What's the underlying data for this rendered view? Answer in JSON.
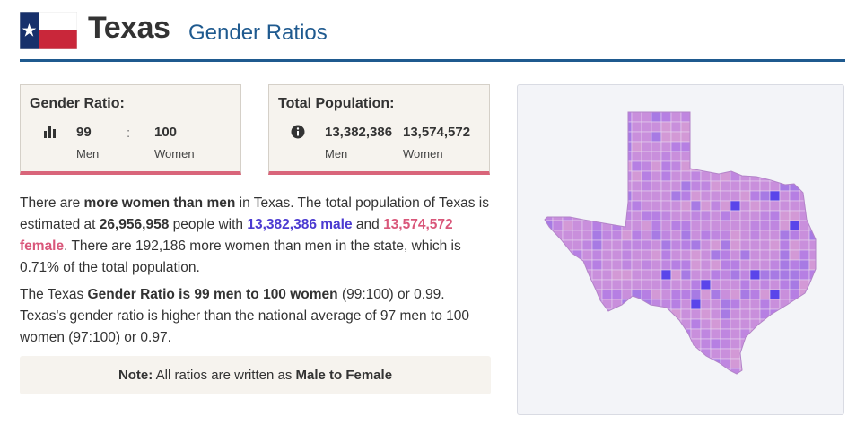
{
  "header": {
    "title": "Texas",
    "subtitle": "Gender Ratios"
  },
  "gender_ratio_card": {
    "title": "Gender Ratio:",
    "men_value": "99",
    "men_label": "Men",
    "separator": ":",
    "women_value": "100",
    "women_label": "Women",
    "icon": "bar-chart-icon"
  },
  "population_card": {
    "title": "Total Population:",
    "men_value": "13,382,386",
    "men_label": "Men",
    "women_value": "13,574,572",
    "women_label": "Women",
    "icon": "info-icon"
  },
  "paragraph1": {
    "t1": "There are ",
    "b1": "more women than men",
    "t2": " in Texas. The total population of Texas is estimated at ",
    "b2": "26,956,958",
    "t3": " people with ",
    "male": "13,382,386 male",
    "t4": " and ",
    "female": "13,574,572 female",
    "t5": ". There are 192,186 more women than men in the state, which is 0.71% of the total population."
  },
  "paragraph2": {
    "t1": "The Texas ",
    "b1": "Gender Ratio is 99 men to 100 women",
    "t2": " (99:100) or 0.99. Texas's gender ratio is higher than the national average of 97 men to 100 women (97:100) or 0.97."
  },
  "note": {
    "label": "Note:",
    "t1": " All ratios are written as ",
    "b1": "Male to Female"
  },
  "colors": {
    "accent": "#1f5a8f",
    "male": "#4b3ad1",
    "female": "#d9577a",
    "map_light": "#c98fdc",
    "map_mid": "#a77ae4",
    "map_dark": "#5a45ea"
  },
  "map": {
    "icon": "texas-county-map"
  }
}
